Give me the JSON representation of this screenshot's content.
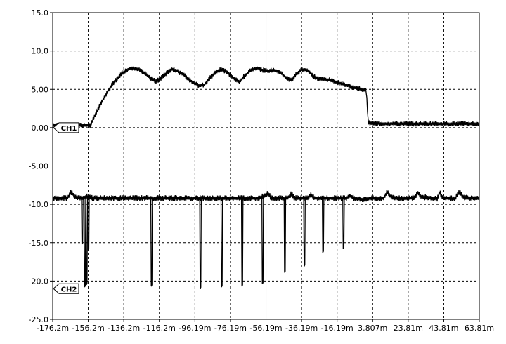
{
  "chart_data": {
    "type": "line",
    "title": "",
    "xlabel": "",
    "ylabel": "",
    "xlim": [
      -176.2,
      63.81
    ],
    "ylim": [
      -25.0,
      15.0
    ],
    "grid": true,
    "x_ticks": [
      {
        "value": -176.2,
        "label": "-176.2m"
      },
      {
        "value": -156.2,
        "label": "-156.2m"
      },
      {
        "value": -136.2,
        "label": "-136.2m"
      },
      {
        "value": -116.2,
        "label": "-116.2m"
      },
      {
        "value": -96.19,
        "label": "-96.19m"
      },
      {
        "value": -76.19,
        "label": "-76.19m"
      },
      {
        "value": -56.19,
        "label": "-56.19m"
      },
      {
        "value": -36.19,
        "label": "-36.19m"
      },
      {
        "value": -16.19,
        "label": "-16.19m"
      },
      {
        "value": 3.807,
        "label": "3.807m"
      },
      {
        "value": 23.81,
        "label": "23.81m"
      },
      {
        "value": 43.81,
        "label": "43.81m"
      },
      {
        "value": 63.81,
        "label": "63.81m"
      }
    ],
    "y_ticks": [
      {
        "value": 15.0,
        "label": "15.0"
      },
      {
        "value": 10.0,
        "label": "10.0"
      },
      {
        "value": 5.0,
        "label": "5.00"
      },
      {
        "value": 0.0,
        "label": "0.00"
      },
      {
        "value": -5.0,
        "label": "-5.00"
      },
      {
        "value": -10.0,
        "label": "-10.0"
      },
      {
        "value": -15.0,
        "label": "-15.0"
      },
      {
        "value": -20.0,
        "label": "-20.0"
      },
      {
        "value": -25.0,
        "label": "-25.0"
      }
    ],
    "series": [
      {
        "name": "CH1",
        "marker_level": 0.0,
        "noise": 0.35,
        "points": [
          [
            -176.2,
            0.3
          ],
          [
            -156.2,
            0.3
          ],
          [
            -155.0,
            0.3
          ],
          [
            -152.0,
            1.8
          ],
          [
            -149.0,
            3.2
          ],
          [
            -146.0,
            4.4
          ],
          [
            -143.0,
            5.5
          ],
          [
            -140.0,
            6.4
          ],
          [
            -137.0,
            7.1
          ],
          [
            -134.0,
            7.6
          ],
          [
            -131.0,
            7.8
          ],
          [
            -128.0,
            7.6
          ],
          [
            -124.0,
            7.0
          ],
          [
            -121.0,
            6.4
          ],
          [
            -118.0,
            6.0
          ],
          [
            -115.0,
            6.5
          ],
          [
            -112.0,
            7.2
          ],
          [
            -109.0,
            7.6
          ],
          [
            -106.0,
            7.4
          ],
          [
            -102.0,
            6.8
          ],
          [
            -98.0,
            6.0
          ],
          [
            -94.0,
            5.5
          ],
          [
            -91.0,
            5.6
          ],
          [
            -88.0,
            6.4
          ],
          [
            -85.0,
            7.1
          ],
          [
            -82.0,
            7.6
          ],
          [
            -79.0,
            7.4
          ],
          [
            -76.0,
            6.8
          ],
          [
            -73.0,
            6.2
          ],
          [
            -71.0,
            6.0
          ],
          [
            -68.0,
            6.8
          ],
          [
            -65.0,
            7.5
          ],
          [
            -61.0,
            7.8
          ],
          [
            -58.0,
            7.5
          ],
          [
            -55.0,
            7.4
          ],
          [
            -52.0,
            7.5
          ],
          [
            -48.0,
            7.2
          ],
          [
            -45.0,
            6.5
          ],
          [
            -42.0,
            6.2
          ],
          [
            -39.0,
            7.0
          ],
          [
            -36.0,
            7.6
          ],
          [
            -33.0,
            7.5
          ],
          [
            -30.0,
            6.8
          ],
          [
            -27.0,
            6.4
          ],
          [
            -24.0,
            6.3
          ],
          [
            -20.0,
            6.2
          ],
          [
            -16.0,
            5.9
          ],
          [
            -12.0,
            5.6
          ],
          [
            -8.0,
            5.3
          ],
          [
            -4.0,
            5.1
          ],
          [
            -0.5,
            4.9
          ],
          [
            0.3,
            4.8
          ],
          [
            1.2,
            1.0
          ],
          [
            1.8,
            0.6
          ],
          [
            10.0,
            0.5
          ],
          [
            30.0,
            0.5
          ],
          [
            50.0,
            0.5
          ],
          [
            63.81,
            0.5
          ]
        ],
        "spikes": []
      },
      {
        "name": "CH2",
        "marker_level": -21.0,
        "noise": 0.4,
        "points": [
          [
            -176.2,
            -9.2
          ],
          [
            -168.0,
            -9.2
          ],
          [
            -166.0,
            -8.3
          ],
          [
            -164.0,
            -9.0
          ],
          [
            -160.0,
            -9.2
          ],
          [
            -157.0,
            -9.0
          ],
          [
            -154.0,
            -9.2
          ],
          [
            -148.0,
            -9.2
          ],
          [
            -120.0,
            -9.2
          ],
          [
            -115.0,
            -9.2
          ],
          [
            -90.0,
            -9.2
          ],
          [
            -60.0,
            -9.2
          ],
          [
            -55.0,
            -8.6
          ],
          [
            -53.0,
            -9.2
          ],
          [
            -44.0,
            -9.2
          ],
          [
            -42.0,
            -8.6
          ],
          [
            -40.0,
            -9.2
          ],
          [
            -33.0,
            -9.2
          ],
          [
            -31.0,
            -8.8
          ],
          [
            -29.0,
            -9.2
          ],
          [
            -11.0,
            -9.2
          ],
          [
            -9.0,
            -8.8
          ],
          [
            -7.0,
            -9.2
          ],
          [
            0.0,
            -9.4
          ],
          [
            3.0,
            -9.2
          ],
          [
            10.0,
            -9.2
          ],
          [
            12.0,
            -8.4
          ],
          [
            14.0,
            -9.0
          ],
          [
            20.0,
            -9.3
          ],
          [
            25.0,
            -9.2
          ],
          [
            28.0,
            -9.0
          ],
          [
            29.0,
            -8.4
          ],
          [
            31.0,
            -9.0
          ],
          [
            40.0,
            -9.3
          ],
          [
            41.5,
            -8.4
          ],
          [
            43.0,
            -9.1
          ],
          [
            50.0,
            -9.3
          ],
          [
            52.5,
            -8.4
          ],
          [
            55.0,
            -9.1
          ],
          [
            63.81,
            -9.2
          ]
        ],
        "spikes": [
          {
            "x": -160.0,
            "y": -15.2
          },
          {
            "x": -158.5,
            "y": -20.8
          },
          {
            "x": -157.5,
            "y": -20.5
          },
          {
            "x": -156.5,
            "y": -16.0
          },
          {
            "x": -121.0,
            "y": -20.7
          },
          {
            "x": -93.5,
            "y": -21.0
          },
          {
            "x": -81.5,
            "y": -20.8
          },
          {
            "x": -70.0,
            "y": -20.7
          },
          {
            "x": -58.5,
            "y": -20.4
          },
          {
            "x": -46.0,
            "y": -18.9
          },
          {
            "x": -35.0,
            "y": -18.1
          },
          {
            "x": -24.5,
            "y": -16.3
          },
          {
            "x": -13.0,
            "y": -15.8
          }
        ]
      }
    ]
  }
}
